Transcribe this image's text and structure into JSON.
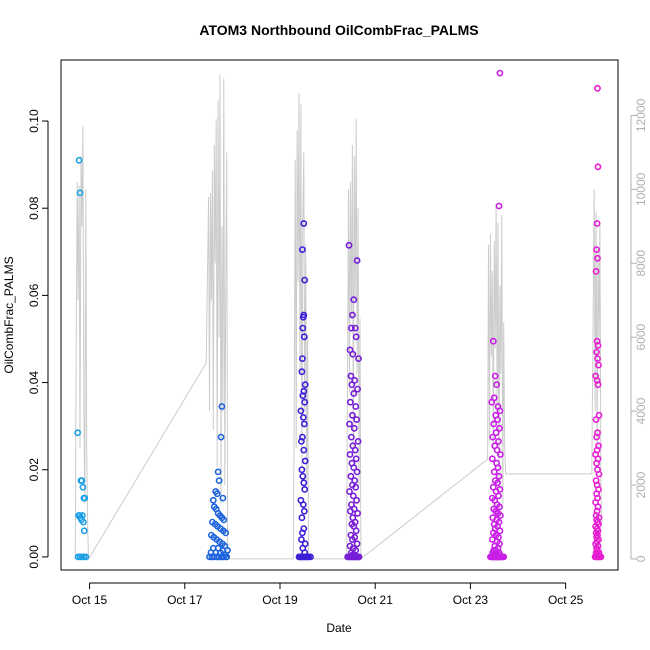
{
  "chart_data": {
    "type": "scatter",
    "title": "ATOM3 Northbound OilCombFrac_PALMS",
    "xlabel": "Date",
    "ylabel": "OilCombFrac_PALMS",
    "x_tick_labels": [
      "Oct 15",
      "Oct 17",
      "Oct 19",
      "Oct 21",
      "Oct 23",
      "Oct 25"
    ],
    "x_tick_values": [
      15,
      17,
      19,
      21,
      23,
      25
    ],
    "xlim": [
      14.4,
      26.1
    ],
    "ylim": [
      -0.003,
      0.114
    ],
    "y_ticks": [
      0.0,
      0.02,
      0.04,
      0.06,
      0.08,
      0.1
    ],
    "y_tick_labels": [
      "0.00",
      "0.02",
      "0.04",
      "0.06",
      "0.08",
      "0.10"
    ],
    "y2lim": [
      -300,
      13500
    ],
    "y2_ticks": [
      0,
      2000,
      4000,
      6000,
      8000,
      10000,
      12000
    ],
    "y2_tick_labels": [
      "0",
      "2000",
      "4000",
      "6000",
      "8000",
      "10000",
      "12000"
    ],
    "colors": {
      "axis": "#000000",
      "altitude_line": "#cccccc",
      "right_axis": "#b0b0b0",
      "flight_oct15": "#1ea0e6",
      "flight_oct17": "#1e64dc",
      "flight_oct19": "#3c1ed7",
      "flight_oct20": "#781ed7",
      "flight_oct23": "#c81ee6",
      "flight_oct25": "#e61ed2"
    },
    "series": [
      {
        "color_key": "flight_oct15",
        "x": [
          14.75,
          14.78,
          14.8,
          14.82,
          14.84,
          14.86,
          14.88,
          14.9,
          14.77,
          14.79,
          14.81,
          14.83,
          14.85,
          14.87,
          14.89,
          14.76,
          14.8,
          14.84,
          14.88,
          14.92
        ],
        "y": [
          0.0285,
          0.091,
          0.0835,
          0.0175,
          0.0175,
          0.016,
          0.0135,
          0.0135,
          0.0095,
          0.0095,
          0.009,
          0.0085,
          0.0095,
          0.008,
          0.006,
          0.0,
          0.0,
          0.0,
          0.0,
          0.0
        ]
      },
      {
        "color_key": "flight_oct17",
        "x": [
          17.78,
          17.76,
          17.7,
          17.72,
          17.65,
          17.68,
          17.8,
          17.6,
          17.62,
          17.66,
          17.7,
          17.74,
          17.78,
          17.82,
          17.58,
          17.64,
          17.69,
          17.75,
          17.81,
          17.86,
          17.56,
          17.61,
          17.67,
          17.73,
          17.79,
          17.84,
          17.6,
          17.7,
          17.8,
          17.9,
          17.55,
          17.65,
          17.75,
          17.85,
          17.58,
          17.68,
          17.78,
          17.88,
          17.52,
          17.62,
          17.72,
          17.82,
          17.57,
          17.67,
          17.77,
          17.87
        ],
        "y": [
          0.0345,
          0.0275,
          0.0195,
          0.0175,
          0.015,
          0.0145,
          0.0135,
          0.013,
          0.0115,
          0.011,
          0.01,
          0.0095,
          0.009,
          0.0085,
          0.008,
          0.0075,
          0.007,
          0.0065,
          0.006,
          0.0055,
          0.005,
          0.0045,
          0.004,
          0.0035,
          0.003,
          0.0025,
          0.002,
          0.002,
          0.0015,
          0.0015,
          0.001,
          0.001,
          0.001,
          0.0005,
          0.0,
          0.0,
          0.0,
          0.0,
          0.0,
          0.0,
          0.0,
          0.0,
          0.0,
          0.0,
          0.0,
          0.0
        ]
      },
      {
        "color_key": "flight_oct19",
        "x": [
          19.5,
          19.47,
          19.52,
          19.5,
          19.49,
          19.48,
          19.51,
          19.47,
          19.46,
          19.53,
          19.5,
          19.48,
          19.52,
          19.44,
          19.49,
          19.51,
          19.47,
          19.45,
          19.5,
          19.53,
          19.46,
          19.48,
          19.5,
          19.52,
          19.44,
          19.49,
          19.51,
          19.46,
          19.5,
          19.47,
          19.45,
          19.53,
          19.48,
          19.52,
          19.4,
          19.44,
          19.48,
          19.52,
          19.56,
          19.6,
          19.64,
          19.42,
          19.46,
          19.5,
          19.54,
          19.58
        ],
        "y": [
          0.0765,
          0.0705,
          0.0635,
          0.0555,
          0.055,
          0.0525,
          0.0505,
          0.0455,
          0.0425,
          0.0395,
          0.038,
          0.037,
          0.0355,
          0.0335,
          0.032,
          0.0305,
          0.0275,
          0.0265,
          0.0245,
          0.022,
          0.02,
          0.0185,
          0.017,
          0.0155,
          0.013,
          0.012,
          0.0105,
          0.009,
          0.0065,
          0.0055,
          0.004,
          0.003,
          0.002,
          0.001,
          0.0,
          0.0,
          0.0,
          0.0,
          0.0,
          0.0,
          0.0,
          0.0,
          0.0,
          0.0,
          0.0,
          0.0
        ]
      },
      {
        "color_key": "flight_oct20",
        "x": [
          20.45,
          20.62,
          20.55,
          20.52,
          20.58,
          20.5,
          20.6,
          20.47,
          20.53,
          20.65,
          20.49,
          20.57,
          20.51,
          20.63,
          20.55,
          20.48,
          20.59,
          20.52,
          20.61,
          20.46,
          20.56,
          20.5,
          20.64,
          20.53,
          20.58,
          20.47,
          20.6,
          20.51,
          20.55,
          20.62,
          20.49,
          20.57,
          20.52,
          20.59,
          20.46,
          20.54,
          20.61,
          20.5,
          20.56,
          20.48,
          20.63,
          20.53,
          20.58,
          20.51,
          20.55,
          20.6,
          20.49,
          20.57,
          20.52,
          20.62,
          20.47,
          20.54,
          20.59,
          20.5,
          20.56,
          20.53,
          20.42,
          20.46,
          20.5,
          20.54,
          20.58,
          20.62,
          20.66,
          20.44,
          20.48,
          20.52,
          20.56,
          20.6,
          20.64
        ],
        "y": [
          0.0715,
          0.068,
          0.059,
          0.0555,
          0.0525,
          0.0525,
          0.0505,
          0.0475,
          0.0465,
          0.0455,
          0.0415,
          0.0405,
          0.0395,
          0.0385,
          0.0375,
          0.0355,
          0.0345,
          0.0325,
          0.0315,
          0.0305,
          0.0295,
          0.0275,
          0.0265,
          0.0255,
          0.0245,
          0.0235,
          0.0225,
          0.0215,
          0.0205,
          0.0195,
          0.0185,
          0.0175,
          0.0165,
          0.016,
          0.015,
          0.014,
          0.013,
          0.012,
          0.011,
          0.0105,
          0.01,
          0.009,
          0.008,
          0.0075,
          0.007,
          0.006,
          0.005,
          0.0045,
          0.004,
          0.003,
          0.0025,
          0.002,
          0.0015,
          0.001,
          0.0005,
          0.0005,
          0.0,
          0.0,
          0.0,
          0.0,
          0.0,
          0.0,
          0.0,
          0.0,
          0.0,
          0.0,
          0.0,
          0.0,
          0.0
        ]
      },
      {
        "color_key": "flight_oct23",
        "x": [
          23.62,
          23.6,
          23.48,
          23.52,
          23.55,
          23.5,
          23.58,
          23.45,
          23.62,
          23.53,
          23.57,
          23.49,
          23.61,
          23.54,
          23.47,
          23.59,
          23.51,
          23.56,
          23.63,
          23.46,
          23.55,
          23.58,
          23.5,
          23.6,
          23.52,
          23.57,
          23.48,
          23.62,
          23.54,
          23.59,
          23.46,
          23.51,
          23.56,
          23.61,
          23.49,
          23.53,
          23.58,
          23.63,
          23.47,
          23.55,
          23.6,
          23.5,
          23.57,
          23.52,
          23.62,
          23.48,
          23.54,
          23.59,
          23.46,
          23.56,
          23.61,
          23.51,
          23.58,
          23.49,
          23.53,
          23.6,
          23.47,
          23.55,
          23.62,
          23.5,
          23.57,
          23.52,
          23.59,
          23.48,
          23.54,
          23.61,
          23.42,
          23.46,
          23.5,
          23.54,
          23.58,
          23.62,
          23.66,
          23.7,
          23.44,
          23.48,
          23.52,
          23.56,
          23.6,
          23.64,
          23.68
        ],
        "y": [
          0.111,
          0.0805,
          0.0495,
          0.0415,
          0.0395,
          0.0365,
          0.0345,
          0.0355,
          0.0335,
          0.0325,
          0.0315,
          0.0305,
          0.0295,
          0.0285,
          0.0275,
          0.0265,
          0.0255,
          0.0245,
          0.0235,
          0.0225,
          0.0215,
          0.0205,
          0.0195,
          0.0185,
          0.0175,
          0.017,
          0.016,
          0.0155,
          0.015,
          0.014,
          0.0135,
          0.013,
          0.012,
          0.0115,
          0.011,
          0.0105,
          0.01,
          0.0095,
          0.009,
          0.0085,
          0.008,
          0.0075,
          0.007,
          0.0065,
          0.006,
          0.0055,
          0.005,
          0.0045,
          0.004,
          0.0035,
          0.003,
          0.0025,
          0.002,
          0.0015,
          0.0015,
          0.001,
          0.001,
          0.0005,
          0.0005,
          0.0005,
          0.0,
          0.0,
          0.0,
          0.0,
          0.0,
          0.0,
          0.0,
          0.0,
          0.0,
          0.0,
          0.0,
          0.0,
          0.0,
          0.0,
          0.0,
          0.0,
          0.0,
          0.0,
          0.0,
          0.0,
          0.0
        ]
      },
      {
        "color_key": "flight_oct25",
        "x": [
          25.67,
          25.68,
          25.66,
          25.65,
          25.67,
          25.64,
          25.66,
          25.68,
          25.65,
          25.67,
          25.69,
          25.63,
          25.66,
          25.68,
          25.7,
          25.64,
          25.67,
          25.65,
          25.69,
          25.66,
          25.63,
          25.68,
          25.65,
          25.67,
          25.7,
          25.64,
          25.66,
          25.69,
          25.65,
          25.67,
          25.63,
          25.68,
          25.66,
          25.64,
          25.7,
          25.65,
          25.67,
          25.69,
          25.63,
          25.66,
          25.68,
          25.64,
          25.67,
          25.65,
          25.69,
          25.66,
          25.63,
          25.68,
          25.65,
          25.67,
          25.64,
          25.7,
          25.66,
          25.68,
          25.62,
          25.66,
          25.7,
          25.74,
          25.64,
          25.68,
          25.72
        ],
        "y": [
          0.1075,
          0.0895,
          0.0765,
          0.0705,
          0.0685,
          0.0655,
          0.0495,
          0.0485,
          0.047,
          0.0455,
          0.044,
          0.0415,
          0.0405,
          0.0395,
          0.0325,
          0.0315,
          0.0285,
          0.0275,
          0.0255,
          0.0245,
          0.0235,
          0.0225,
          0.0215,
          0.02,
          0.019,
          0.0175,
          0.0165,
          0.0155,
          0.0145,
          0.0135,
          0.0125,
          0.0115,
          0.0105,
          0.0095,
          0.009,
          0.0085,
          0.008,
          0.0075,
          0.007,
          0.0065,
          0.006,
          0.0055,
          0.005,
          0.0045,
          0.004,
          0.0035,
          0.003,
          0.0025,
          0.002,
          0.0015,
          0.001,
          0.001,
          0.0005,
          0.0005,
          0.0,
          0.0,
          0.0,
          0.0,
          0.0,
          0.0,
          0.0
        ]
      }
    ],
    "altitude_profile": {
      "description_units": "secondary axis values",
      "x": [
        14.7,
        14.72,
        14.74,
        14.76,
        14.78,
        14.8,
        14.82,
        14.84,
        14.86,
        14.88,
        14.9,
        14.92,
        14.94,
        14.96,
        14.98,
        17.45,
        17.5,
        17.52,
        17.54,
        17.56,
        17.58,
        17.6,
        17.62,
        17.64,
        17.66,
        17.68,
        17.7,
        17.72,
        17.74,
        17.76,
        17.78,
        17.8,
        17.82,
        17.84,
        17.86,
        17.88,
        17.9,
        17.92,
        19.28,
        19.3,
        19.32,
        19.34,
        19.36,
        19.38,
        19.4,
        19.42,
        19.44,
        19.46,
        19.48,
        19.5,
        19.52,
        19.54,
        19.56,
        19.58,
        19.6,
        19.62,
        19.64,
        20.4,
        20.42,
        20.44,
        20.46,
        20.48,
        20.5,
        20.52,
        20.54,
        20.56,
        20.58,
        20.6,
        20.62,
        20.64,
        20.66,
        20.68,
        20.7,
        23.36,
        23.38,
        23.4,
        23.42,
        23.44,
        23.46,
        23.48,
        23.5,
        23.52,
        23.54,
        23.56,
        23.58,
        23.6,
        23.62,
        23.64,
        23.66,
        23.68,
        23.7,
        23.72,
        23.74,
        25.5,
        25.55,
        25.6,
        25.62,
        25.64,
        25.66,
        25.68,
        25.7,
        25.72,
        25.74,
        25.76
      ],
      "y": [
        0,
        5800,
        10200,
        7000,
        10100,
        3000,
        10900,
        9000,
        11700,
        4000,
        1500,
        10000,
        3000,
        800,
        0,
        5300,
        9800,
        4000,
        9900,
        7000,
        10500,
        3500,
        11200,
        8000,
        11900,
        2500,
        12400,
        6000,
        13100,
        1500,
        9000,
        4000,
        13000,
        2000,
        7000,
        11000,
        500,
        0,
        0,
        4500,
        10800,
        3000,
        11600,
        7500,
        12600,
        5000,
        12300,
        2500,
        9000,
        11000,
        4000,
        8500,
        2000,
        6000,
        0,
        0,
        0,
        0,
        5200,
        10000,
        4500,
        10200,
        6500,
        11200,
        3000,
        10900,
        7000,
        11900,
        5000,
        9500,
        2000,
        6500,
        0,
        2700,
        8500,
        3200,
        8800,
        5500,
        7800,
        3000,
        8600,
        5700,
        9600,
        4000,
        9100,
        2000,
        7400,
        5000,
        9300,
        1500,
        6400,
        3000,
        2300,
        2300,
        2300,
        10000,
        4000,
        9400,
        3000,
        8400,
        6000,
        9100,
        2000,
        1000
      ]
    }
  }
}
